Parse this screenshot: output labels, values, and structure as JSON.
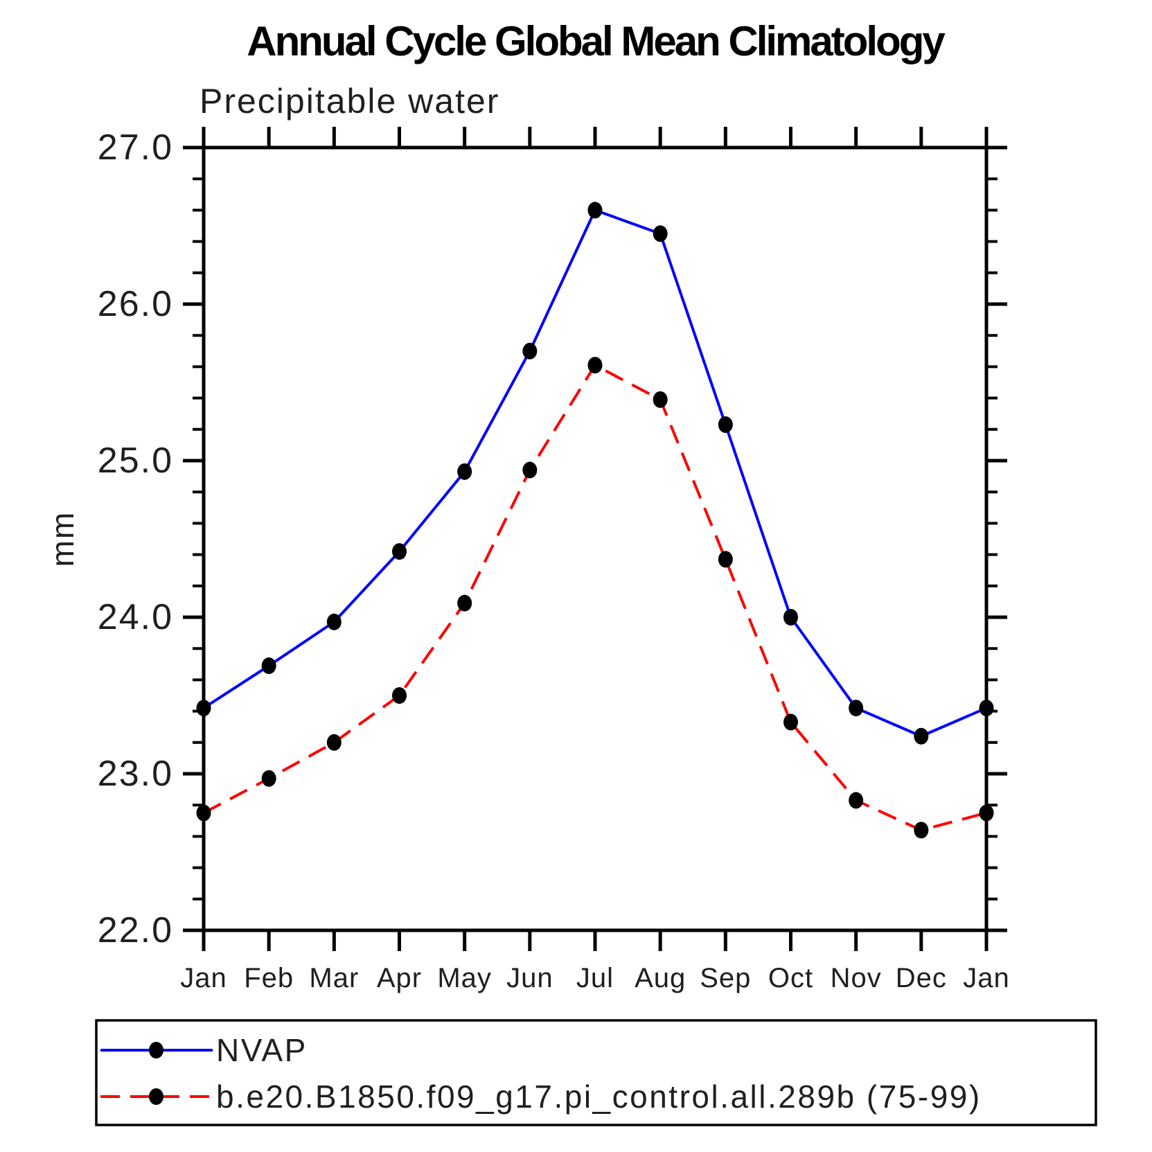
{
  "chart_data": {
    "type": "line",
    "title": "Annual Cycle Global Mean Climatology",
    "subtitle": "Precipitable water",
    "ylabel": "mm",
    "xlabel": "",
    "categories": [
      "Jan",
      "Feb",
      "Mar",
      "Apr",
      "May",
      "Jun",
      "Jul",
      "Aug",
      "Sep",
      "Oct",
      "Nov",
      "Dec",
      "Jan"
    ],
    "ylim": [
      22.0,
      27.0
    ],
    "ytick_values": [
      22.0,
      23.0,
      24.0,
      25.0,
      26.0,
      27.0
    ],
    "ytick_labels": [
      "22.0",
      "23.0",
      "24.0",
      "25.0",
      "26.0",
      "27.0"
    ],
    "minor_tick_step": 0.2,
    "grid": false,
    "legend_position": "bottom",
    "series": [
      {
        "name": "NVAP",
        "color": "#0000ff",
        "line_style": "solid",
        "marker": "filled-circle",
        "marker_color": "#000000",
        "values": [
          23.42,
          23.69,
          23.97,
          24.42,
          24.93,
          25.7,
          26.6,
          26.45,
          25.23,
          24.0,
          23.42,
          23.24,
          23.42
        ]
      },
      {
        "name": "b.e20.B1850.f09_g17.pi_control.all.289b (75-99)",
        "color": "#ff0000",
        "line_style": "dashed",
        "marker": "filled-circle",
        "marker_color": "#000000",
        "values": [
          22.75,
          22.97,
          23.2,
          23.5,
          24.09,
          24.94,
          25.61,
          25.39,
          24.37,
          23.33,
          22.83,
          22.64,
          22.75
        ]
      }
    ]
  },
  "colors": {
    "background": "#ffffff",
    "axis": "#000000",
    "text": "#1f1f1f",
    "title": "#000000"
  }
}
